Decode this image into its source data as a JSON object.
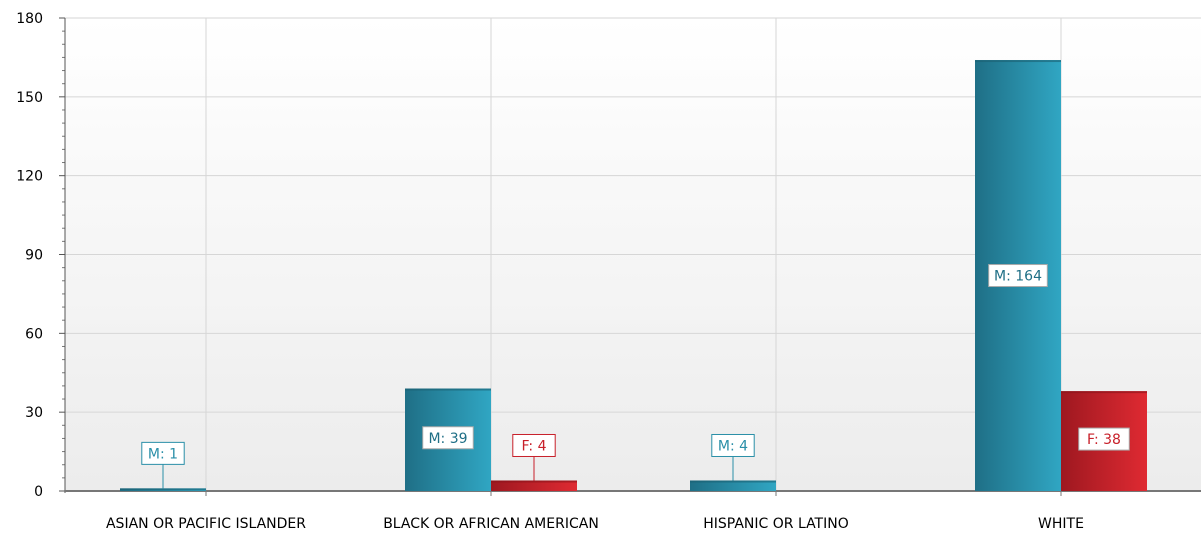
{
  "chart_data": {
    "type": "bar",
    "categories": [
      "ASIAN OR PACIFIC ISLANDER",
      "BLACK OR AFRICAN AMERICAN",
      "HISPANIC OR LATINO",
      "WHITE"
    ],
    "series": [
      {
        "values": [
          1,
          39,
          4,
          164
        ],
        "labels": [
          "M: 1",
          "M: 39",
          "M: 4",
          "M: 164"
        ],
        "color": "#2a93ae"
      },
      {
        "values": [
          null,
          4,
          null,
          38
        ],
        "labels": [
          "",
          "F: 4",
          "",
          "F: 38"
        ],
        "color": "#c8202a"
      }
    ],
    "yticks": [
      0,
      30,
      60,
      90,
      120,
      150,
      180
    ],
    "ylim": [
      0,
      180
    ],
    "grid": true,
    "legend": "none"
  }
}
